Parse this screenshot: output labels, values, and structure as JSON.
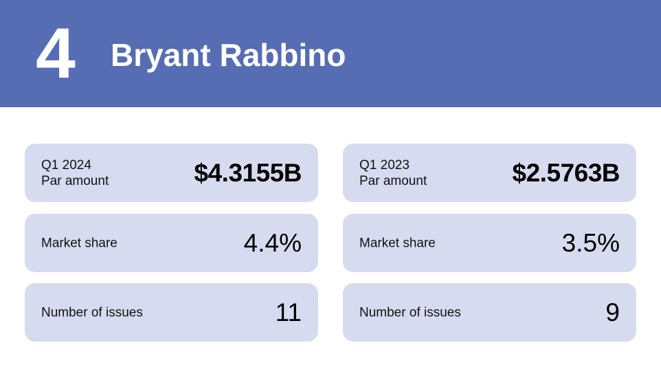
{
  "header": {
    "rank": "4",
    "name": "Bryant Rabbino"
  },
  "left": {
    "par_period": "Q1 2024",
    "par_label": "Par amount",
    "par_value": "$4.3155B",
    "share_label": "Market share",
    "share_value": "4.4%",
    "issues_label": "Number of issues",
    "issues_value": "11"
  },
  "right": {
    "par_period": "Q1 2023",
    "par_label": "Par amount",
    "par_value": "$2.5763B",
    "share_label": "Market share",
    "share_value": "3.5%",
    "issues_label": "Number of issues",
    "issues_value": "9"
  },
  "colors": {
    "header_bg": "#566db3",
    "card_bg": "#d7dbef"
  }
}
